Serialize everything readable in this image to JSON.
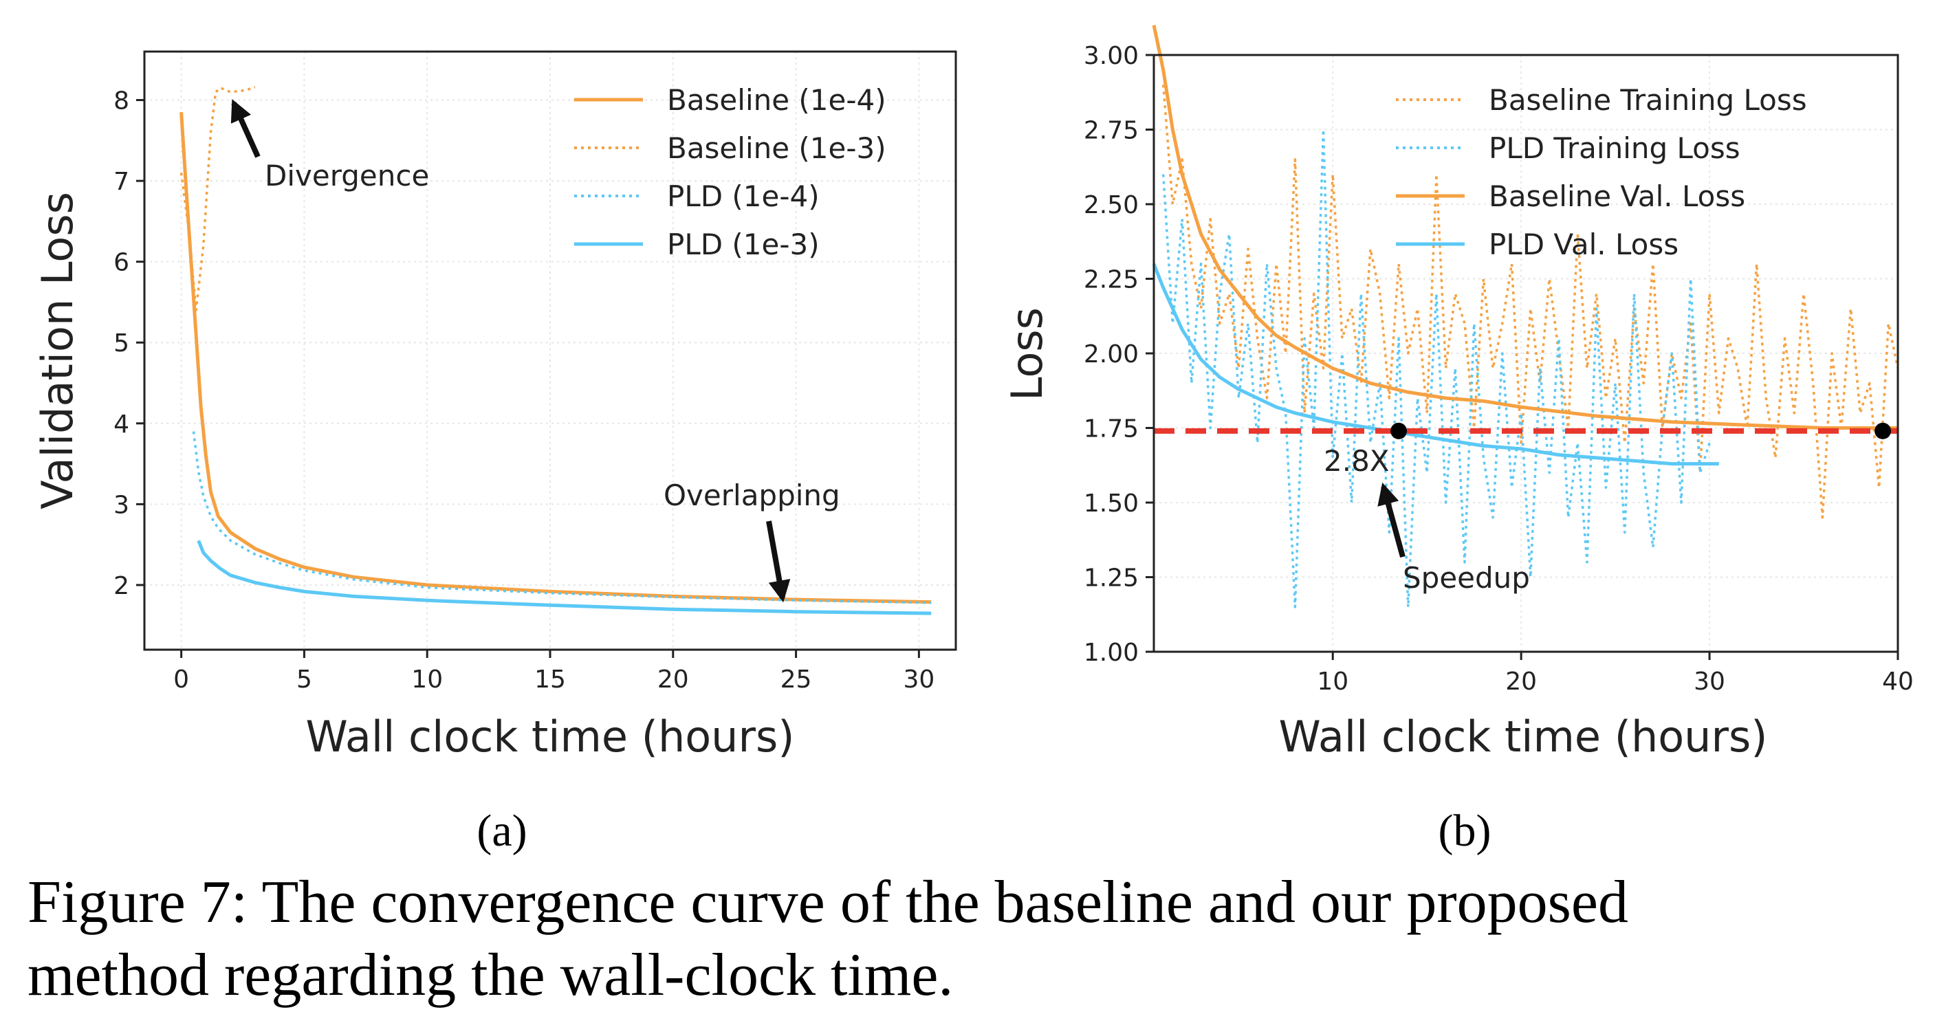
{
  "caption": {
    "line1": "Figure 7: The convergence curve of the baseline and our proposed",
    "line2": "method regarding the wall-clock time."
  },
  "chart_data": [
    {
      "panel": "(a)",
      "type": "line",
      "title": "",
      "xlabel": "Wall clock time (hours)",
      "ylabel": "Validation Loss",
      "xlim": [
        -1.5,
        31.5
      ],
      "ylim": [
        1.2,
        8.6
      ],
      "xticks": [
        0,
        5,
        10,
        15,
        20,
        25,
        30
      ],
      "yticks": [
        2,
        3,
        4,
        5,
        6,
        7,
        8
      ],
      "grid": true,
      "legend_position": "upper-right",
      "series": [
        {
          "name": "Baseline (1e-4)",
          "color": "#f5a142",
          "style": "solid",
          "x": [
            0,
            0.2,
            0.4,
            0.6,
            0.8,
            1.0,
            1.2,
            1.5,
            2,
            3,
            4,
            5,
            7,
            10,
            15,
            20,
            25,
            30.5
          ],
          "y": [
            7.85,
            6.9,
            6.0,
            5.1,
            4.2,
            3.6,
            3.15,
            2.85,
            2.65,
            2.45,
            2.32,
            2.22,
            2.1,
            2.0,
            1.92,
            1.86,
            1.82,
            1.79
          ]
        },
        {
          "name": "Baseline (1e-3)",
          "color": "#f5a142",
          "style": "dotted",
          "x": [
            0,
            0.3,
            0.6,
            0.9,
            1.2,
            1.4,
            1.6,
            2.0,
            2.6,
            3.0
          ],
          "y": [
            7.1,
            6.4,
            5.4,
            6.2,
            7.6,
            8.1,
            8.15,
            8.1,
            8.12,
            8.16
          ]
        },
        {
          "name": "PLD (1e-4)",
          "color": "#5cc8f5",
          "style": "dotted",
          "x": [
            0.5,
            0.7,
            0.9,
            1.2,
            1.5,
            2,
            3,
            4,
            5,
            7,
            10,
            15,
            20,
            25,
            30.5
          ],
          "y": [
            3.9,
            3.4,
            3.1,
            2.85,
            2.7,
            2.55,
            2.38,
            2.27,
            2.18,
            2.07,
            1.97,
            1.9,
            1.85,
            1.81,
            1.78
          ]
        },
        {
          "name": "PLD (1e-3)",
          "color": "#5cc8f5",
          "style": "solid",
          "x": [
            0.7,
            0.9,
            1.2,
            1.6,
            2,
            3,
            4,
            5,
            7,
            10,
            15,
            20,
            25,
            30.5
          ],
          "y": [
            2.55,
            2.4,
            2.3,
            2.2,
            2.12,
            2.03,
            1.97,
            1.92,
            1.86,
            1.81,
            1.75,
            1.7,
            1.67,
            1.65
          ]
        }
      ],
      "annotations": [
        {
          "text": "Divergence",
          "tip": [
            2.1,
            8.0
          ]
        },
        {
          "text": "Overlapping",
          "tip": [
            24.5,
            1.88
          ]
        }
      ]
    },
    {
      "panel": "(b)",
      "type": "line",
      "title": "",
      "xlabel": "Wall clock time (hours)",
      "ylabel": "Loss",
      "xlim": [
        0.5,
        40
      ],
      "ylim": [
        1.0,
        3.0
      ],
      "xticks": [
        10,
        20,
        30,
        40
      ],
      "yticks": [
        1.0,
        1.25,
        1.5,
        1.75,
        2.0,
        2.25,
        2.5,
        2.75,
        3.0
      ],
      "ytick_labels": [
        "1.00",
        "1.25",
        "1.50",
        "1.75",
        "2.00",
        "2.25",
        "2.50",
        "2.75",
        "3.00"
      ],
      "grid": true,
      "legend_position": "upper-right",
      "series": [
        {
          "name": "Baseline Training Loss",
          "color": "#f5a142",
          "style": "dotted",
          "x": [
            1.0,
            1.5,
            2,
            2.5,
            3,
            3.5,
            4,
            4.5,
            5,
            5.5,
            6,
            6.5,
            7,
            7.5,
            8,
            8.5,
            9,
            9.5,
            10,
            10.5,
            11,
            11.5,
            12,
            12.5,
            13,
            13.5,
            14,
            14.5,
            15,
            15.5,
            16,
            16.5,
            17,
            17.5,
            18,
            18.5,
            19,
            19.5,
            20,
            20.5,
            21,
            21.5,
            22,
            22.5,
            23,
            23.5,
            24,
            24.5,
            25,
            25.5,
            26,
            26.5,
            27,
            27.5,
            28,
            28.5,
            29,
            29.5,
            30,
            30.5,
            31,
            31.5,
            32,
            32.5,
            33,
            33.5,
            34,
            34.5,
            35,
            35.5,
            36,
            36.5,
            37,
            37.5,
            38,
            38.5,
            39,
            39.5,
            40
          ],
          "y": [
            2.9,
            2.5,
            2.65,
            2.3,
            2.15,
            2.45,
            2.1,
            2.2,
            1.95,
            2.35,
            2.05,
            1.85,
            2.3,
            2.0,
            2.65,
            1.8,
            2.2,
            1.95,
            2.6,
            2.05,
            2.15,
            1.9,
            2.35,
            2.2,
            1.85,
            2.3,
            2.0,
            2.15,
            1.8,
            2.6,
            1.95,
            2.2,
            2.1,
            1.75,
            2.25,
            1.95,
            2.1,
            2.3,
            1.7,
            2.15,
            1.9,
            2.25,
            2.0,
            1.75,
            2.4,
            1.95,
            2.2,
            1.85,
            2.05,
            1.7,
            2.15,
            1.9,
            2.3,
            1.75,
            2.0,
            1.85,
            2.1,
            1.6,
            2.2,
            1.8,
            2.05,
            1.95,
            1.75,
            2.3,
            1.85,
            1.65,
            2.05,
            1.8,
            2.2,
            1.9,
            1.45,
            2.0,
            1.75,
            2.15,
            1.8,
            1.9,
            1.55,
            2.1,
            1.95
          ]
        },
        {
          "name": "PLD Training Loss",
          "color": "#5cc8f5",
          "style": "dotted",
          "x": [
            1.0,
            1.5,
            2,
            2.5,
            3,
            3.5,
            4,
            4.5,
            5,
            5.5,
            6,
            6.5,
            7,
            7.5,
            8,
            8.5,
            9,
            9.5,
            10,
            10.5,
            11,
            11.5,
            12,
            12.5,
            13,
            13.5,
            14,
            14.5,
            15,
            15.5,
            16,
            16.5,
            17,
            17.5,
            18,
            18.5,
            19,
            19.5,
            20,
            20.5,
            21,
            21.5,
            22,
            22.5,
            23,
            23.5,
            24,
            24.5,
            25,
            25.5,
            26,
            26.5,
            27,
            27.5,
            28,
            28.5,
            29,
            29.5,
            30
          ],
          "y": [
            2.6,
            2.1,
            2.45,
            1.9,
            2.3,
            1.75,
            2.2,
            2.4,
            1.85,
            2.1,
            1.7,
            2.3,
            1.95,
            1.8,
            1.15,
            2.05,
            1.75,
            2.75,
            1.65,
            2.0,
            1.5,
            2.2,
            1.7,
            1.9,
            1.4,
            2.05,
            1.15,
            1.85,
            1.6,
            2.2,
            1.5,
            1.95,
            1.3,
            2.1,
            1.65,
            1.45,
            2.0,
            1.55,
            1.8,
            1.25,
            1.95,
            1.6,
            2.05,
            1.45,
            1.7,
            1.3,
            2.15,
            1.55,
            1.9,
            1.4,
            2.2,
            1.6,
            1.35,
            1.75,
            2.0,
            1.5,
            2.25,
            1.6,
            1.7
          ]
        },
        {
          "name": "Baseline Val. Loss",
          "color": "#f5a142",
          "style": "solid",
          "x": [
            0.5,
            1.0,
            1.5,
            2,
            3,
            4,
            5,
            6,
            7,
            8,
            10,
            12,
            14,
            16,
            18,
            20,
            24,
            28,
            32,
            36,
            40
          ],
          "y": [
            3.1,
            2.95,
            2.75,
            2.6,
            2.4,
            2.28,
            2.2,
            2.12,
            2.06,
            2.02,
            1.95,
            1.9,
            1.87,
            1.85,
            1.84,
            1.82,
            1.79,
            1.77,
            1.76,
            1.75,
            1.75
          ]
        },
        {
          "name": "PLD Val. Loss",
          "color": "#5cc8f5",
          "style": "solid",
          "x": [
            0.5,
            1.0,
            1.5,
            2,
            3,
            4,
            5,
            6,
            7,
            8,
            10,
            12,
            14,
            16,
            18,
            20,
            22,
            24,
            26,
            28,
            30.5
          ],
          "y": [
            2.3,
            2.22,
            2.15,
            2.08,
            1.98,
            1.92,
            1.88,
            1.85,
            1.82,
            1.8,
            1.77,
            1.75,
            1.73,
            1.71,
            1.69,
            1.68,
            1.66,
            1.65,
            1.64,
            1.63,
            1.63
          ]
        }
      ],
      "reference_line": {
        "y": 1.74,
        "color": "#e8372c",
        "style": "dashed"
      },
      "points": [
        {
          "x": 13.5,
          "y": 1.74
        },
        {
          "x": 39.2,
          "y": 1.74
        }
      ],
      "annotations": [
        {
          "text": "2.8X",
          "at": [
            12.2,
            1.65
          ]
        },
        {
          "text": "Speedup",
          "tip": [
            13.3,
            1.55
          ]
        }
      ]
    }
  ]
}
